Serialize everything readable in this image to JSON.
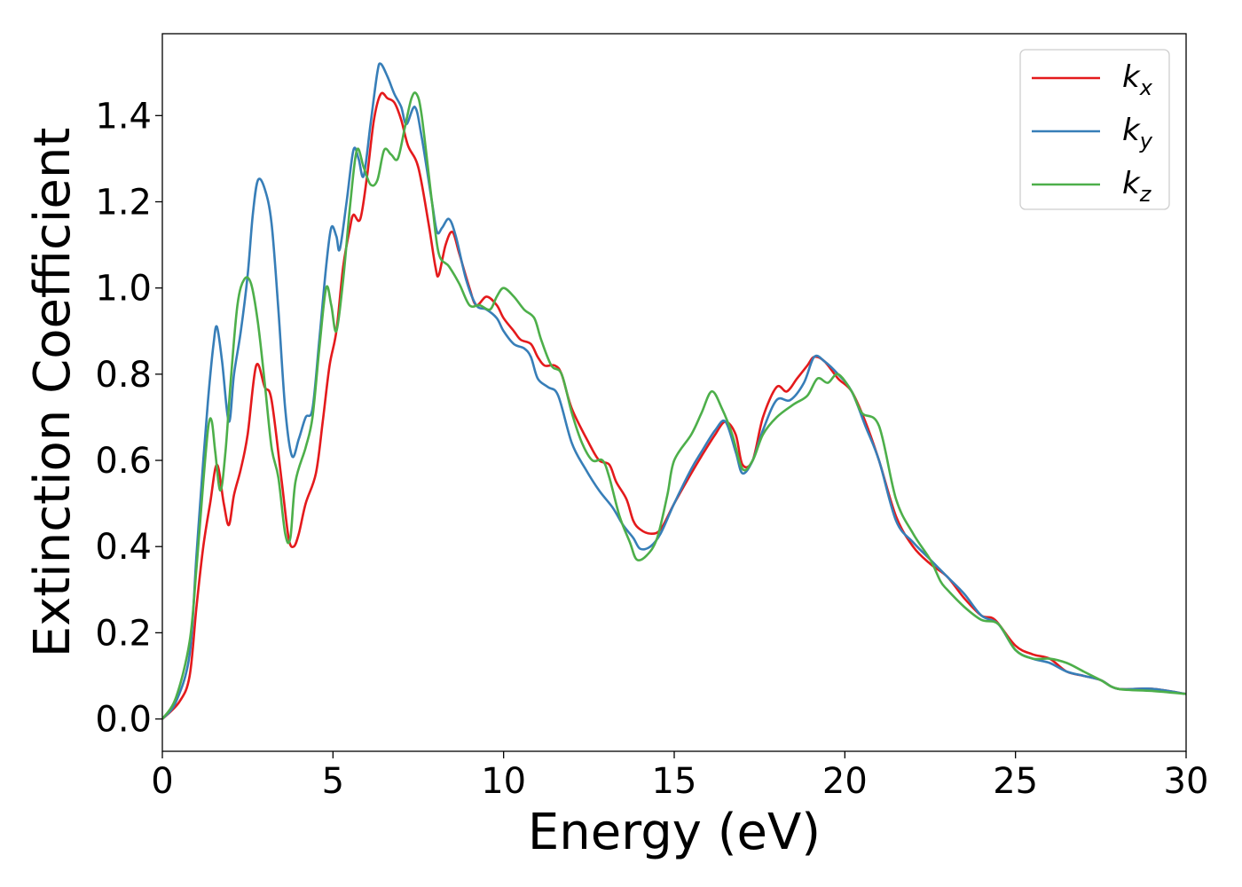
{
  "chart_data": {
    "type": "line",
    "title": "",
    "xlabel": "Energy (eV)",
    "ylabel": "Extinction Coefficient",
    "xlim": [
      0,
      30
    ],
    "ylim": [
      -0.075,
      1.59
    ],
    "x_ticks": [
      0,
      5,
      10,
      15,
      20,
      25,
      30
    ],
    "x_tick_labels": [
      "0",
      "5",
      "10",
      "15",
      "20",
      "25",
      "30"
    ],
    "y_ticks": [
      0.0,
      0.2,
      0.4,
      0.6,
      0.8,
      1.0,
      1.2,
      1.4
    ],
    "y_tick_labels": [
      "0.0",
      "0.2",
      "0.4",
      "0.6",
      "0.8",
      "1.0",
      "1.2",
      "1.4"
    ],
    "grid": false,
    "legend_position": "top-right",
    "series": [
      {
        "name": "k_x",
        "label_main": "k",
        "label_sub": "x",
        "color": "#e41a1c",
        "points": [
          [
            0,
            0
          ],
          [
            0.5,
            0.04
          ],
          [
            0.8,
            0.1
          ],
          [
            1.0,
            0.26
          ],
          [
            1.2,
            0.4
          ],
          [
            1.4,
            0.5
          ],
          [
            1.6,
            0.59
          ],
          [
            1.8,
            0.5
          ],
          [
            1.95,
            0.45
          ],
          [
            2.1,
            0.52
          ],
          [
            2.3,
            0.58
          ],
          [
            2.5,
            0.66
          ],
          [
            2.75,
            0.82
          ],
          [
            3.0,
            0.77
          ],
          [
            3.2,
            0.74
          ],
          [
            3.5,
            0.55
          ],
          [
            3.7,
            0.42
          ],
          [
            3.85,
            0.4
          ],
          [
            4.0,
            0.43
          ],
          [
            4.2,
            0.5
          ],
          [
            4.5,
            0.57
          ],
          [
            4.7,
            0.69
          ],
          [
            4.9,
            0.82
          ],
          [
            5.1,
            0.9
          ],
          [
            5.3,
            1.05
          ],
          [
            5.5,
            1.14
          ],
          [
            5.6,
            1.17
          ],
          [
            5.8,
            1.16
          ],
          [
            6.0,
            1.26
          ],
          [
            6.2,
            1.39
          ],
          [
            6.4,
            1.45
          ],
          [
            6.6,
            1.44
          ],
          [
            6.8,
            1.43
          ],
          [
            7.0,
            1.39
          ],
          [
            7.2,
            1.33
          ],
          [
            7.5,
            1.28
          ],
          [
            7.8,
            1.15
          ],
          [
            8.0,
            1.05
          ],
          [
            8.1,
            1.03
          ],
          [
            8.3,
            1.1
          ],
          [
            8.5,
            1.13
          ],
          [
            8.7,
            1.08
          ],
          [
            9.0,
            1.0
          ],
          [
            9.2,
            0.96
          ],
          [
            9.5,
            0.98
          ],
          [
            9.8,
            0.96
          ],
          [
            10.0,
            0.93
          ],
          [
            10.3,
            0.9
          ],
          [
            10.5,
            0.88
          ],
          [
            10.8,
            0.87
          ],
          [
            11.0,
            0.84
          ],
          [
            11.2,
            0.82
          ],
          [
            11.5,
            0.82
          ],
          [
            11.7,
            0.8
          ],
          [
            12.0,
            0.72
          ],
          [
            12.5,
            0.64
          ],
          [
            12.8,
            0.6
          ],
          [
            13.1,
            0.59
          ],
          [
            13.3,
            0.55
          ],
          [
            13.6,
            0.51
          ],
          [
            13.8,
            0.46
          ],
          [
            14.0,
            0.44
          ],
          [
            14.3,
            0.43
          ],
          [
            14.6,
            0.44
          ],
          [
            15.0,
            0.5
          ],
          [
            15.5,
            0.57
          ],
          [
            15.8,
            0.61
          ],
          [
            16.2,
            0.66
          ],
          [
            16.5,
            0.69
          ],
          [
            16.8,
            0.66
          ],
          [
            17.0,
            0.59
          ],
          [
            17.3,
            0.6
          ],
          [
            17.6,
            0.7
          ],
          [
            18.0,
            0.77
          ],
          [
            18.3,
            0.76
          ],
          [
            18.6,
            0.79
          ],
          [
            18.9,
            0.82
          ],
          [
            19.1,
            0.84
          ],
          [
            19.4,
            0.83
          ],
          [
            19.8,
            0.79
          ],
          [
            20.2,
            0.76
          ],
          [
            20.6,
            0.69
          ],
          [
            21.0,
            0.6
          ],
          [
            21.5,
            0.47
          ],
          [
            22.0,
            0.4
          ],
          [
            22.5,
            0.36
          ],
          [
            23.0,
            0.33
          ],
          [
            23.5,
            0.28
          ],
          [
            24.0,
            0.24
          ],
          [
            24.4,
            0.23
          ],
          [
            25.0,
            0.17
          ],
          [
            25.5,
            0.15
          ],
          [
            26.0,
            0.14
          ],
          [
            26.5,
            0.11
          ],
          [
            27.0,
            0.1
          ],
          [
            27.5,
            0.09
          ],
          [
            28.0,
            0.07
          ],
          [
            29.0,
            0.07
          ],
          [
            30,
            0.058
          ]
        ]
      },
      {
        "name": "k_y",
        "label_main": "k",
        "label_sub": "y",
        "color": "#377eb8",
        "points": [
          [
            0,
            0
          ],
          [
            0.4,
            0.04
          ],
          [
            0.8,
            0.15
          ],
          [
            1.0,
            0.38
          ],
          [
            1.2,
            0.6
          ],
          [
            1.35,
            0.75
          ],
          [
            1.5,
            0.87
          ],
          [
            1.6,
            0.91
          ],
          [
            1.75,
            0.83
          ],
          [
            1.95,
            0.69
          ],
          [
            2.1,
            0.8
          ],
          [
            2.3,
            0.9
          ],
          [
            2.5,
            1.03
          ],
          [
            2.65,
            1.17
          ],
          [
            2.8,
            1.25
          ],
          [
            3.0,
            1.23
          ],
          [
            3.2,
            1.15
          ],
          [
            3.4,
            0.95
          ],
          [
            3.6,
            0.72
          ],
          [
            3.8,
            0.61
          ],
          [
            4.0,
            0.65
          ],
          [
            4.2,
            0.7
          ],
          [
            4.4,
            0.72
          ],
          [
            4.6,
            0.88
          ],
          [
            4.8,
            1.05
          ],
          [
            4.95,
            1.14
          ],
          [
            5.1,
            1.12
          ],
          [
            5.2,
            1.09
          ],
          [
            5.4,
            1.2
          ],
          [
            5.6,
            1.32
          ],
          [
            5.75,
            1.3
          ],
          [
            5.9,
            1.26
          ],
          [
            6.1,
            1.38
          ],
          [
            6.3,
            1.5
          ],
          [
            6.4,
            1.52
          ],
          [
            6.6,
            1.49
          ],
          [
            6.8,
            1.45
          ],
          [
            7.0,
            1.42
          ],
          [
            7.15,
            1.38
          ],
          [
            7.4,
            1.42
          ],
          [
            7.6,
            1.35
          ],
          [
            7.9,
            1.2
          ],
          [
            8.05,
            1.13
          ],
          [
            8.2,
            1.14
          ],
          [
            8.4,
            1.16
          ],
          [
            8.6,
            1.12
          ],
          [
            8.9,
            1.02
          ],
          [
            9.2,
            0.96
          ],
          [
            9.5,
            0.95
          ],
          [
            9.8,
            0.93
          ],
          [
            10.0,
            0.9
          ],
          [
            10.3,
            0.87
          ],
          [
            10.6,
            0.86
          ],
          [
            10.8,
            0.84
          ],
          [
            11.0,
            0.79
          ],
          [
            11.3,
            0.77
          ],
          [
            11.6,
            0.75
          ],
          [
            12.0,
            0.64
          ],
          [
            12.4,
            0.58
          ],
          [
            12.8,
            0.53
          ],
          [
            13.2,
            0.49
          ],
          [
            13.5,
            0.45
          ],
          [
            13.8,
            0.42
          ],
          [
            14.0,
            0.395
          ],
          [
            14.3,
            0.4
          ],
          [
            14.6,
            0.43
          ],
          [
            15.0,
            0.5
          ],
          [
            15.5,
            0.58
          ],
          [
            15.8,
            0.62
          ],
          [
            16.2,
            0.67
          ],
          [
            16.5,
            0.69
          ],
          [
            16.8,
            0.62
          ],
          [
            17.0,
            0.57
          ],
          [
            17.3,
            0.6
          ],
          [
            17.6,
            0.67
          ],
          [
            18.0,
            0.74
          ],
          [
            18.4,
            0.74
          ],
          [
            18.8,
            0.78
          ],
          [
            19.1,
            0.84
          ],
          [
            19.4,
            0.83
          ],
          [
            19.8,
            0.8
          ],
          [
            20.2,
            0.76
          ],
          [
            20.6,
            0.68
          ],
          [
            21.0,
            0.6
          ],
          [
            21.5,
            0.46
          ],
          [
            22.0,
            0.41
          ],
          [
            22.5,
            0.37
          ],
          [
            23.0,
            0.33
          ],
          [
            23.5,
            0.29
          ],
          [
            24.0,
            0.24
          ],
          [
            24.5,
            0.22
          ],
          [
            25.0,
            0.16
          ],
          [
            25.5,
            0.14
          ],
          [
            26.0,
            0.13
          ],
          [
            26.5,
            0.11
          ],
          [
            27.0,
            0.1
          ],
          [
            27.5,
            0.09
          ],
          [
            28.0,
            0.07
          ],
          [
            29.0,
            0.07
          ],
          [
            30,
            0.058
          ]
        ]
      },
      {
        "name": "k_z",
        "label_main": "k",
        "label_sub": "z",
        "color": "#4daf4a",
        "points": [
          [
            0,
            0
          ],
          [
            0.4,
            0.05
          ],
          [
            0.8,
            0.18
          ],
          [
            1.0,
            0.35
          ],
          [
            1.2,
            0.55
          ],
          [
            1.35,
            0.68
          ],
          [
            1.45,
            0.69
          ],
          [
            1.55,
            0.62
          ],
          [
            1.7,
            0.53
          ],
          [
            1.85,
            0.62
          ],
          [
            2.0,
            0.78
          ],
          [
            2.2,
            0.96
          ],
          [
            2.4,
            1.02
          ],
          [
            2.6,
            1.01
          ],
          [
            2.8,
            0.92
          ],
          [
            3.0,
            0.78
          ],
          [
            3.2,
            0.63
          ],
          [
            3.4,
            0.56
          ],
          [
            3.6,
            0.43
          ],
          [
            3.75,
            0.42
          ],
          [
            3.9,
            0.55
          ],
          [
            4.2,
            0.63
          ],
          [
            4.4,
            0.7
          ],
          [
            4.6,
            0.86
          ],
          [
            4.8,
            1.0
          ],
          [
            4.95,
            0.96
          ],
          [
            5.1,
            0.9
          ],
          [
            5.3,
            1.02
          ],
          [
            5.5,
            1.19
          ],
          [
            5.7,
            1.32
          ],
          [
            5.9,
            1.28
          ],
          [
            6.1,
            1.24
          ],
          [
            6.3,
            1.25
          ],
          [
            6.5,
            1.32
          ],
          [
            6.7,
            1.31
          ],
          [
            6.9,
            1.3
          ],
          [
            7.1,
            1.37
          ],
          [
            7.3,
            1.44
          ],
          [
            7.45,
            1.45
          ],
          [
            7.6,
            1.4
          ],
          [
            7.9,
            1.2
          ],
          [
            8.1,
            1.08
          ],
          [
            8.4,
            1.05
          ],
          [
            8.7,
            1.01
          ],
          [
            9.0,
            0.96
          ],
          [
            9.3,
            0.96
          ],
          [
            9.6,
            0.95
          ],
          [
            9.8,
            0.98
          ],
          [
            10.0,
            1.0
          ],
          [
            10.3,
            0.98
          ],
          [
            10.6,
            0.95
          ],
          [
            10.9,
            0.93
          ],
          [
            11.1,
            0.88
          ],
          [
            11.4,
            0.82
          ],
          [
            11.7,
            0.8
          ],
          [
            12.0,
            0.71
          ],
          [
            12.3,
            0.64
          ],
          [
            12.6,
            0.6
          ],
          [
            12.9,
            0.6
          ],
          [
            13.1,
            0.56
          ],
          [
            13.4,
            0.47
          ],
          [
            13.7,
            0.41
          ],
          [
            13.9,
            0.37
          ],
          [
            14.2,
            0.38
          ],
          [
            14.5,
            0.42
          ],
          [
            14.8,
            0.52
          ],
          [
            15.0,
            0.6
          ],
          [
            15.5,
            0.66
          ],
          [
            15.8,
            0.71
          ],
          [
            16.1,
            0.76
          ],
          [
            16.4,
            0.72
          ],
          [
            16.7,
            0.66
          ],
          [
            17.0,
            0.58
          ],
          [
            17.3,
            0.6
          ],
          [
            17.6,
            0.66
          ],
          [
            18.0,
            0.7
          ],
          [
            18.5,
            0.73
          ],
          [
            18.9,
            0.75
          ],
          [
            19.2,
            0.79
          ],
          [
            19.5,
            0.78
          ],
          [
            19.8,
            0.8
          ],
          [
            20.2,
            0.76
          ],
          [
            20.5,
            0.71
          ],
          [
            21.0,
            0.68
          ],
          [
            21.5,
            0.51
          ],
          [
            22.0,
            0.43
          ],
          [
            22.5,
            0.37
          ],
          [
            22.8,
            0.32
          ],
          [
            23.0,
            0.3
          ],
          [
            23.5,
            0.26
          ],
          [
            24.0,
            0.23
          ],
          [
            24.5,
            0.22
          ],
          [
            25.0,
            0.16
          ],
          [
            25.5,
            0.14
          ],
          [
            26.0,
            0.14
          ],
          [
            26.5,
            0.13
          ],
          [
            27.0,
            0.11
          ],
          [
            27.5,
            0.09
          ],
          [
            28.0,
            0.07
          ],
          [
            29.0,
            0.065
          ],
          [
            30,
            0.058
          ]
        ]
      }
    ]
  }
}
